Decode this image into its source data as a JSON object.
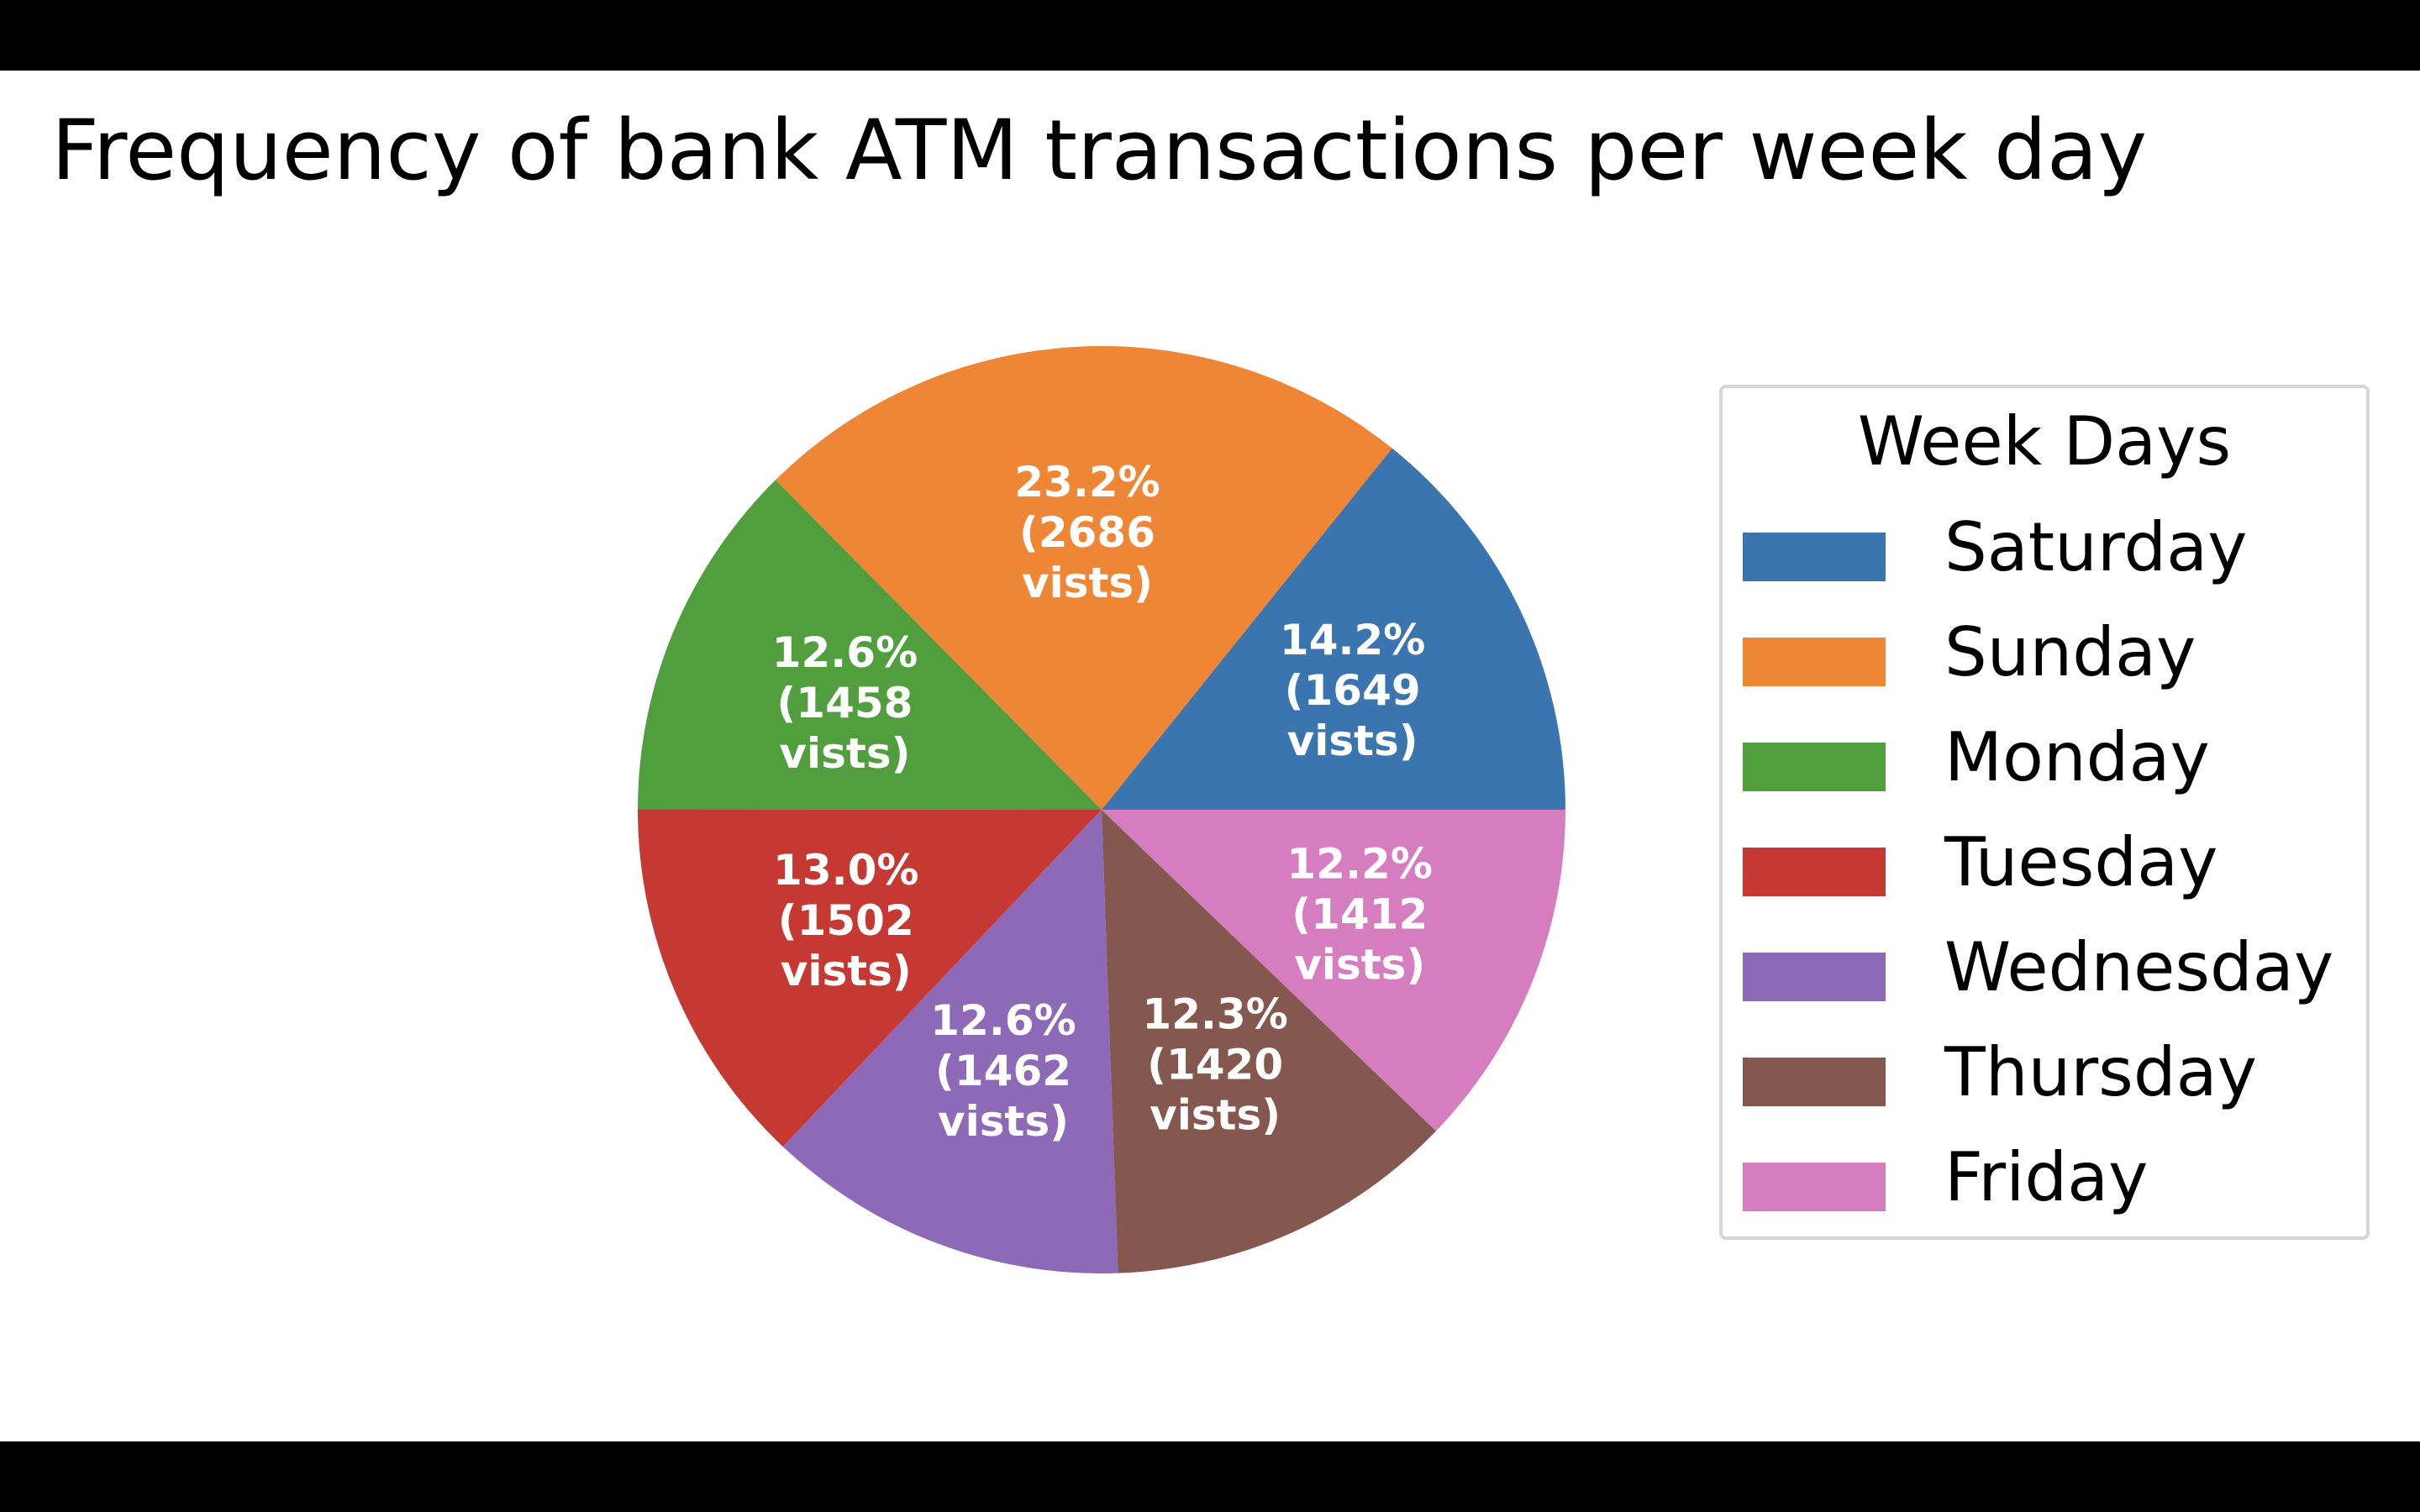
{
  "chart_data": {
    "type": "pie",
    "title": "Frequency of bank ATM transactions per week day",
    "legend_title": "Week Days",
    "legend_position": "right",
    "slices": [
      {
        "name": "Saturday",
        "value": 1649,
        "percent_label": "14.2%",
        "count_label": "(1649",
        "suffix": "vists)",
        "color": "#3b75af"
      },
      {
        "name": "Sunday",
        "value": 2686,
        "percent_label": "23.2%",
        "count_label": "(2686",
        "suffix": "vists)",
        "color": "#ef8636"
      },
      {
        "name": "Monday",
        "value": 1458,
        "percent_label": "12.6%",
        "count_label": "(1458",
        "suffix": "vists)",
        "color": "#519e3e"
      },
      {
        "name": "Tuesday",
        "value": 1502,
        "percent_label": "13.0%",
        "count_label": "(1502",
        "suffix": "vists)",
        "color": "#c53932"
      },
      {
        "name": "Wednesday",
        "value": 1462,
        "percent_label": "12.6%",
        "count_label": "(1462",
        "suffix": "vists)",
        "color": "#8d69b8"
      },
      {
        "name": "Thursday",
        "value": 1420,
        "percent_label": "12.3%",
        "count_label": "(1420",
        "suffix": "vists)",
        "color": "#84584e"
      },
      {
        "name": "Friday",
        "value": 1412,
        "percent_label": "12.2%",
        "count_label": "(1412",
        "suffix": "vists)",
        "color": "#d57dbe"
      }
    ],
    "start_angle_deg": 0,
    "direction": "counterclockwise"
  }
}
